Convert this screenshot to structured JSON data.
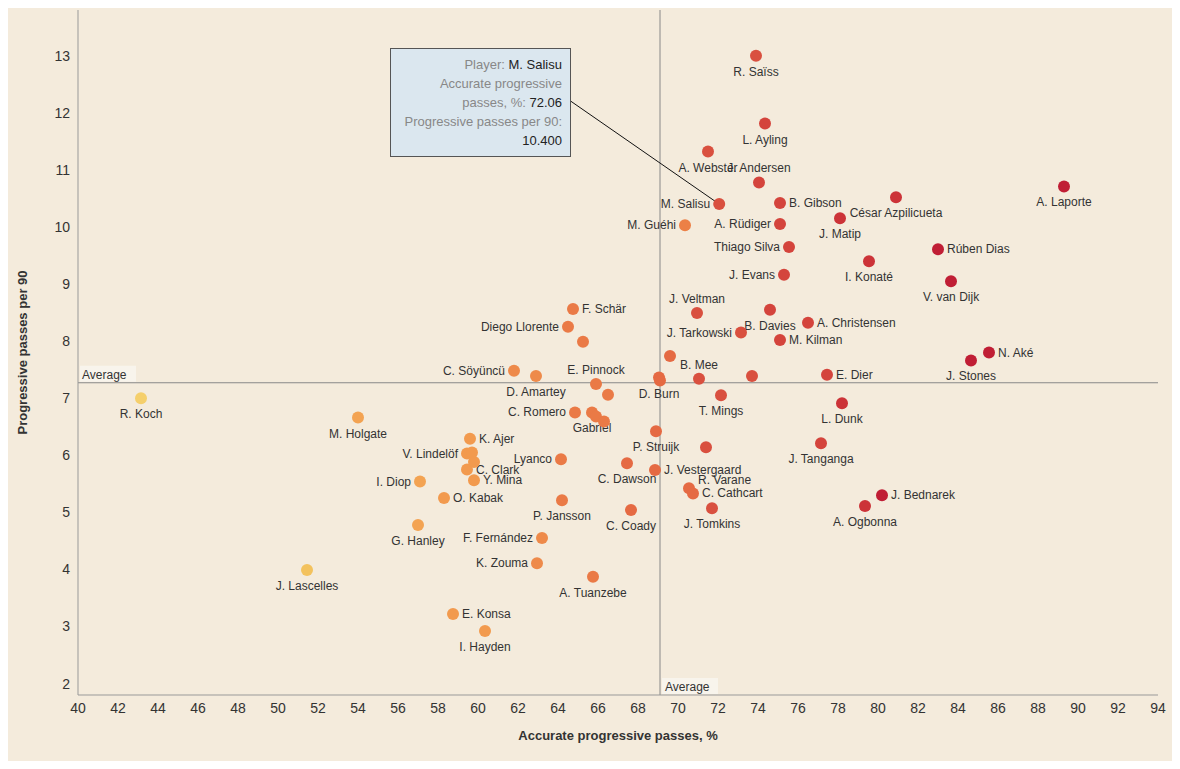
{
  "chart_data": {
    "type": "scatter",
    "x_label": "Accurate progressive passes, %",
    "y_label": "Progressive passes per 90",
    "xlim": [
      40,
      94
    ],
    "xticks": [
      40,
      42,
      44,
      46,
      48,
      50,
      52,
      54,
      56,
      58,
      60,
      62,
      64,
      66,
      68,
      70,
      72,
      74,
      76,
      78,
      80,
      82,
      84,
      86,
      88,
      90,
      92,
      94
    ],
    "ylim": [
      1.8,
      13.8
    ],
    "yticks": [
      2,
      3,
      4,
      5,
      6,
      7,
      8,
      9,
      10,
      11,
      12,
      13
    ],
    "grid": false,
    "marker": "circle",
    "labels": [
      "R. Saïss",
      "L. Ayling",
      "A. Webster",
      "J. Andersen",
      "B. Gibson",
      "M. Salisu",
      "A. Laporte",
      "César Azpilicueta",
      "M. Guéhi",
      "A. Rüdiger",
      "J. Matip",
      "Thiago Silva",
      "Rúben Dias",
      "I. Konaté",
      "J. Evans",
      "V. van Dijk",
      "F. Schär",
      "J. Veltman",
      "B. Davies",
      "Diego Llorente",
      null,
      "A. Christensen",
      "J. Tarkowski",
      "M. Kilman",
      "N. Aké",
      "J. Stones",
      null,
      "C. Söyüncü",
      "D. Amartey",
      "E. Pinnock",
      null,
      "D. Burn",
      null,
      "B. Mee",
      null,
      "E. Dier",
      "T. Mings",
      "L. Dunk",
      "R. Koch",
      "M. Holgate",
      "C. Romero",
      "Gabriel",
      null,
      null,
      "P. Struijk",
      "K. Ajer",
      "J. Tanganga",
      null,
      "J. Vestergaard",
      "Lyanco",
      "V. Lindelöf",
      null,
      "C. Clark",
      null,
      "C. Dawson",
      "I. Diop",
      "Y. Mina",
      "R. Varane",
      "C. Cathcart",
      "J. Bednarek",
      "O. Kabak",
      "P. Jansson",
      "J. Tomkins",
      "A. Ogbonna",
      "C. Coady",
      "G. Hanley",
      "F. Fernández",
      "J. Lascelles",
      "K. Zouma",
      "A. Tuanzebe",
      "E. Konsa",
      "I. Hayden"
    ],
    "x": [
      73.9,
      74.35,
      71.5,
      74.05,
      75.1,
      72.06,
      89.3,
      80.9,
      70.35,
      75.1,
      78.1,
      75.55,
      83.0,
      79.55,
      75.3,
      83.65,
      64.75,
      70.95,
      74.6,
      64.5,
      65.25,
      76.5,
      73.15,
      75.1,
      85.55,
      84.65,
      69.6,
      61.8,
      62.9,
      65.9,
      66.5,
      69.05,
      69.1,
      71.05,
      73.7,
      77.45,
      72.15,
      78.2,
      43.15,
      54.0,
      64.85,
      65.7,
      65.9,
      66.3,
      68.9,
      59.6,
      77.15,
      71.4,
      68.85,
      64.15,
      59.45,
      59.7,
      59.45,
      59.8,
      67.45,
      57.1,
      59.8,
      70.55,
      70.75,
      80.2,
      58.3,
      64.2,
      71.7,
      79.35,
      67.65,
      57.0,
      63.2,
      51.45,
      62.95,
      65.75,
      58.75,
      60.35
    ],
    "y": [
      13.0,
      11.81,
      11.32,
      10.78,
      10.42,
      10.4,
      10.71,
      10.52,
      10.03,
      10.05,
      10.15,
      9.65,
      9.61,
      9.4,
      9.16,
      9.05,
      8.56,
      8.49,
      8.55,
      8.25,
      7.99,
      8.32,
      8.15,
      8.02,
      7.8,
      7.66,
      7.74,
      7.48,
      7.39,
      7.25,
      7.06,
      7.36,
      7.31,
      7.34,
      7.39,
      7.41,
      7.05,
      6.91,
      7.0,
      6.66,
      6.75,
      6.75,
      6.68,
      6.59,
      6.42,
      6.29,
      6.21,
      6.14,
      5.74,
      5.93,
      6.03,
      6.05,
      5.75,
      5.88,
      5.86,
      5.54,
      5.56,
      5.42,
      5.33,
      5.3,
      5.25,
      5.21,
      5.07,
      5.11,
      5.04,
      4.78,
      4.55,
      3.99,
      4.11,
      3.87,
      3.22,
      2.92
    ],
    "colors": [
      "#d9503f",
      "#d4443c",
      "#d9503f",
      "#d4443c",
      "#d4443c",
      "#d9503f",
      "#c01e35",
      "#cc3338",
      "#ec8046",
      "#d4443c",
      "#cc3338",
      "#d4443c",
      "#c01e35",
      "#cc3338",
      "#d4443c",
      "#c01e35",
      "#ea7a46",
      "#d9503f",
      "#d4443c",
      "#ea7a46",
      "#ea7a46",
      "#d4443c",
      "#d9503f",
      "#d4443c",
      "#c01e35",
      "#c01e35",
      "#e56a43",
      "#ee8a4a",
      "#ee8a4a",
      "#ea7a46",
      "#ea7a46",
      "#e56a43",
      "#e56a43",
      "#d9503f",
      "#d9503f",
      "#d4443c",
      "#d9503f",
      "#cc3338",
      "#f5cf6b",
      "#f3a352",
      "#ea7a46",
      "#ea7a46",
      "#ea7a46",
      "#ea7a46",
      "#e56a43",
      "#f29a4e",
      "#d4443c",
      "#d9503f",
      "#e56a43",
      "#ea7a46",
      "#f29a4e",
      "#f29a4e",
      "#f29a4e",
      "#f29a4e",
      "#e56a43",
      "#f3a352",
      "#f29a4e",
      "#e56a43",
      "#e56a43",
      "#c01e35",
      "#f29a4e",
      "#ea7a46",
      "#d9503f",
      "#cc3338",
      "#e56a43",
      "#f3a352",
      "#ee8a4a",
      "#f3c25d",
      "#ee8a4a",
      "#ea7a46",
      "#f29a4e",
      "#f29a4e"
    ],
    "reference_lines": [
      {
        "axis": "x",
        "value": 69.1,
        "label": "Average"
      },
      {
        "axis": "y",
        "value": 7.27,
        "label": "Average"
      }
    ],
    "tooltip": {
      "player_label": "Player:",
      "player": "M. Salisu",
      "fields": [
        {
          "label": "Accurate progressive passes, %:",
          "value": 72.06,
          "value_label": "72.06"
        },
        {
          "label": "Progressive passes per 90:",
          "value": 10.4,
          "value_label": "10.400"
        }
      ]
    }
  }
}
